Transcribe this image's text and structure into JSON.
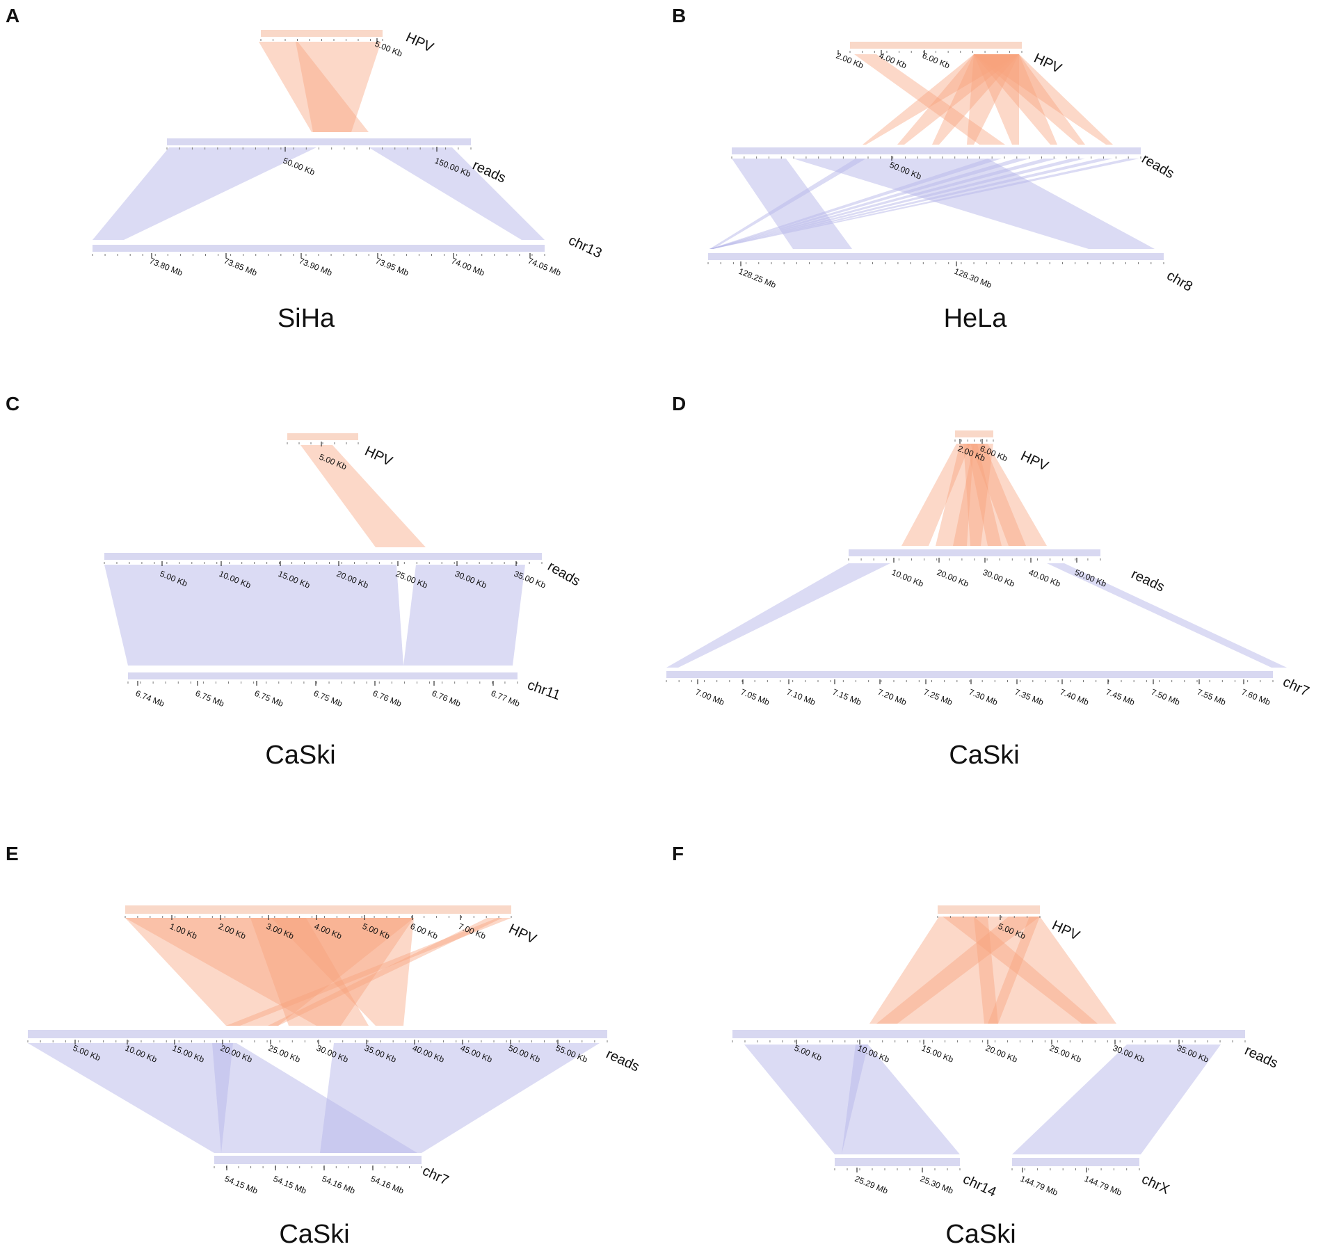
{
  "colors": {
    "hpv_bar": "#f9d8c8",
    "hpv_link": "#f9a27c",
    "host_bar": "#d8d8f1",
    "host_link": "#b8b8ea"
  },
  "panels": [
    {
      "id": "A",
      "cell_line": "SiHa",
      "tracks": [
        {
          "name": "HPV",
          "ticks": [
            "5.00 Kb"
          ]
        },
        {
          "name": "reads",
          "ticks": [
            "50.00 Kb",
            "150.00 Kb"
          ]
        },
        {
          "name": "chr13",
          "ticks": [
            "73.80 Mb",
            "73.85 Mb",
            "73.90 Mb",
            "73.95 Mb",
            "74.00 Mb",
            "74.05 Mb"
          ]
        }
      ]
    },
    {
      "id": "B",
      "cell_line": "HeLa",
      "tracks": [
        {
          "name": "HPV",
          "ticks": [
            "2.00 Kb",
            "4.00 Kb",
            "6.00 Kb"
          ]
        },
        {
          "name": "reads",
          "ticks": [
            "50.00 Kb"
          ]
        },
        {
          "name": "chr8",
          "ticks": [
            "128.25 Mb",
            "128.30 Mb"
          ]
        }
      ]
    },
    {
      "id": "C",
      "cell_line": "CaSki",
      "tracks": [
        {
          "name": "HPV",
          "ticks": [
            "5.00 Kb"
          ]
        },
        {
          "name": "reads",
          "ticks": [
            "5.00 Kb",
            "10.00 Kb",
            "15.00 Kb",
            "20.00 Kb",
            "25.00 Kb",
            "30.00 Kb",
            "35.00 Kb"
          ]
        },
        {
          "name": "chr11",
          "ticks": [
            "6.74 Mb",
            "6.75 Mb",
            "6.75 Mb",
            "6.75 Mb",
            "6.76 Mb",
            "6.76 Mb",
            "6.77 Mb"
          ]
        }
      ]
    },
    {
      "id": "D",
      "cell_line": "CaSki",
      "tracks": [
        {
          "name": "HPV",
          "ticks": [
            "2.00 Kb",
            "6.00 Kb"
          ]
        },
        {
          "name": "reads",
          "ticks": [
            "10.00 Kb",
            "20.00 Kb",
            "30.00 Kb",
            "40.00 Kb",
            "50.00 Kb"
          ]
        },
        {
          "name": "chr7",
          "ticks": [
            "7.00 Mb",
            "7.05 Mb",
            "7.10 Mb",
            "7.15 Mb",
            "7.20 Mb",
            "7.25 Mb",
            "7.30 Mb",
            "7.35 Mb",
            "7.40 Mb",
            "7.45 Mb",
            "7.50 Mb",
            "7.55 Mb",
            "7.60 Mb"
          ]
        }
      ]
    },
    {
      "id": "E",
      "cell_line": "CaSki",
      "tracks": [
        {
          "name": "HPV",
          "ticks": [
            "1.00 Kb",
            "2.00 Kb",
            "3.00 Kb",
            "4.00 Kb",
            "5.00 Kb",
            "6.00 Kb",
            "7.00 Kb"
          ]
        },
        {
          "name": "reads",
          "ticks": [
            "5.00 Kb",
            "10.00 Kb",
            "15.00 Kb",
            "20.00 Kb",
            "25.00 Kb",
            "30.00 Kb",
            "35.00 Kb",
            "40.00 Kb",
            "45.00 Kb",
            "50.00 Kb",
            "55.00 Kb"
          ]
        },
        {
          "name": "chr7",
          "ticks": [
            "54.15 Mb",
            "54.15 Mb",
            "54.16 Mb",
            "54.16 Mb"
          ]
        }
      ]
    },
    {
      "id": "F",
      "cell_line": "CaSki",
      "tracks": [
        {
          "name": "HPV",
          "ticks": [
            "5.00 Kb"
          ]
        },
        {
          "name": "reads",
          "ticks": [
            "5.00 Kb",
            "10.00 Kb",
            "15.00 Kb",
            "20.00 Kb",
            "25.00 Kb",
            "30.00 Kb",
            "35.00 Kb"
          ]
        },
        {
          "name": "chr14",
          "ticks": [
            "25.29 Mb",
            "25.30 Mb"
          ]
        },
        {
          "name": "chrX",
          "ticks": [
            "144.79 Mb",
            "144.79 Mb"
          ]
        }
      ]
    }
  ]
}
